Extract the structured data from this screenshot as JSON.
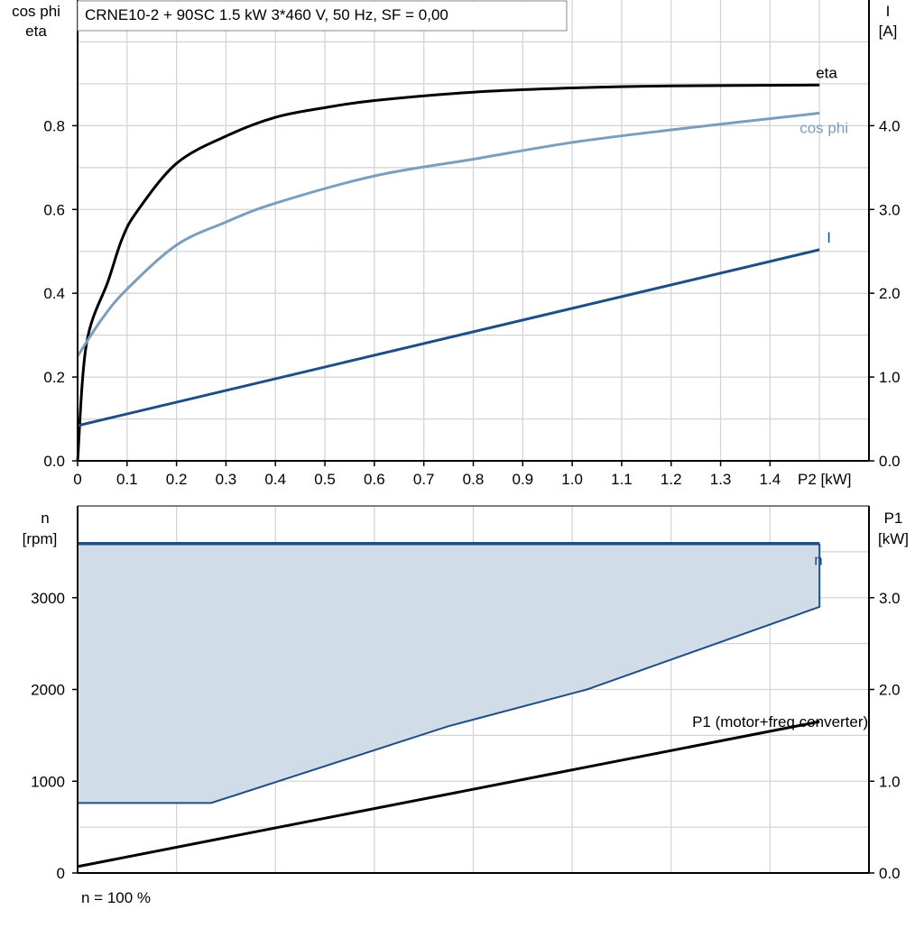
{
  "chart_data": [
    {
      "type": "line",
      "title": "CRNE10-2 + 90SC   1.5 kW   3*460 V, 50 Hz, SF = 0,00",
      "xlabel": "P2 [kW]",
      "ylabel_left": [
        "cos phi",
        "eta"
      ],
      "ylabel_right": [
        "I",
        "[A]"
      ],
      "xlim": [
        0,
        1.6
      ],
      "ylim_left": [
        0,
        1.1
      ],
      "ylim_right": [
        0,
        5.5
      ],
      "x_ticks": [
        "0",
        "0.1",
        "0.2",
        "0.3",
        "0.4",
        "0.5",
        "0.6",
        "0.7",
        "0.8",
        "0.9",
        "1.0",
        "1.1",
        "1.2",
        "1.3",
        "1.4"
      ],
      "y_ticks_left": [
        "0.0",
        "0.2",
        "0.4",
        "0.6",
        "0.8"
      ],
      "y_ticks_right": [
        "0.0",
        "1.0",
        "2.0",
        "3.0",
        "4.0"
      ],
      "grid": true,
      "series": [
        {
          "name": "eta",
          "axis": "left",
          "color": "#000000",
          "x": [
            0,
            0.018,
            0.062,
            0.09,
            0.12,
            0.2,
            0.3,
            0.4,
            0.5,
            0.6,
            0.8,
            1.0,
            1.2,
            1.5
          ],
          "y": [
            0,
            0.28,
            0.43,
            0.53,
            0.595,
            0.71,
            0.775,
            0.82,
            0.843,
            0.86,
            0.88,
            0.89,
            0.895,
            0.897
          ]
        },
        {
          "name": "cos phi",
          "axis": "left",
          "color": "#7b9ebf",
          "x": [
            0,
            0.05,
            0.1,
            0.2,
            0.3,
            0.4,
            0.6,
            0.8,
            1.0,
            1.2,
            1.5
          ],
          "y": [
            0.25,
            0.34,
            0.41,
            0.515,
            0.57,
            0.615,
            0.68,
            0.72,
            0.76,
            0.79,
            0.83
          ]
        },
        {
          "name": "I",
          "axis": "right",
          "color": "#1f4e85",
          "x": [
            0,
            1.5
          ],
          "y": [
            0.42,
            2.52
          ]
        }
      ]
    },
    {
      "type": "area",
      "xlabel": "",
      "ylabel_left": [
        "n",
        "[rpm]"
      ],
      "ylabel_right": [
        "P1",
        "[kW]"
      ],
      "xlim": [
        0,
        1.6
      ],
      "ylim_left": [
        0,
        4000
      ],
      "ylim_right": [
        0,
        4.0
      ],
      "y_ticks_left": [
        "0",
        "1000",
        "2000",
        "3000"
      ],
      "y_ticks_right": [
        "0.0",
        "1.0",
        "2.0",
        "3.0"
      ],
      "grid": true,
      "footer": "n = 100 %",
      "fill_color": "#d0dce8",
      "series": [
        {
          "name": "n",
          "axis": "left",
          "color": "#1f4e85",
          "x": [
            0,
            1.5
          ],
          "y": [
            3590,
            3590
          ]
        },
        {
          "axis": "left",
          "color": "#1f4e85",
          "role": "lower-bound",
          "x": [
            0,
            0.27,
            0.75,
            1.03,
            1.5
          ],
          "y": [
            763,
            763,
            1600,
            2000,
            2900
          ]
        },
        {
          "name": "P1 (motor+freq.converter)",
          "axis": "right",
          "color": "#000000",
          "x": [
            0,
            1.5
          ],
          "y": [
            0.07,
            1.65
          ]
        }
      ]
    }
  ]
}
